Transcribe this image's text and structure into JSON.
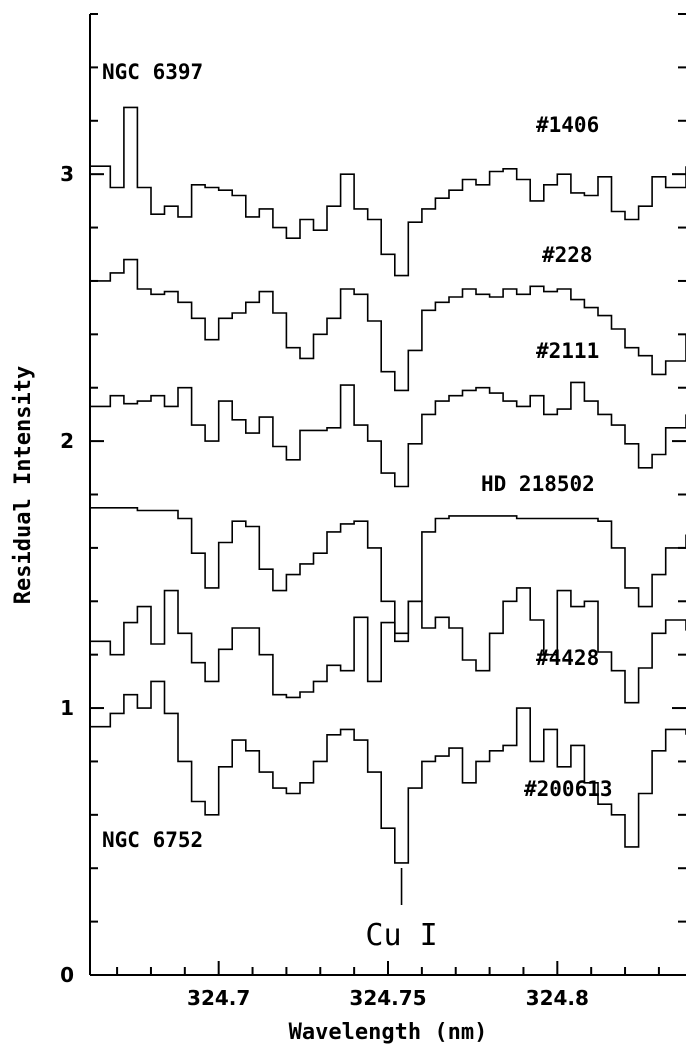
{
  "chart_data": {
    "type": "line",
    "title": "",
    "xlabel": "Wavelength (nm)",
    "ylabel": "Residual Intensity",
    "xlim": [
      324.662,
      324.838
    ],
    "ylim": [
      0,
      3.6
    ],
    "x_ticks": [
      "324.7",
      "324.75",
      "324.8"
    ],
    "y_ticks": [
      "0",
      "1",
      "2",
      "3"
    ],
    "grid": false,
    "cluster_labels": {
      "top": "NGC 6397",
      "bottom": "NGC 6752"
    },
    "line_annotation": {
      "label": "Cu I",
      "x": 324.754
    },
    "series": [
      {
        "name": "#1406",
        "x": [
          324.662,
          324.668,
          324.672,
          324.676,
          324.68,
          324.684,
          324.688,
          324.692,
          324.696,
          324.7,
          324.704,
          324.708,
          324.712,
          324.716,
          324.72,
          324.724,
          324.728,
          324.732,
          324.736,
          324.74,
          324.744,
          324.748,
          324.752,
          324.756,
          324.76,
          324.764,
          324.768,
          324.772,
          324.776,
          324.78,
          324.784,
          324.788,
          324.792,
          324.796,
          324.8,
          324.804,
          324.808,
          324.812,
          324.816,
          324.82,
          324.824,
          324.828,
          324.832,
          324.838
        ],
        "y": [
          3.03,
          2.95,
          3.25,
          2.95,
          2.85,
          2.88,
          2.84,
          2.96,
          2.95,
          2.94,
          2.92,
          2.84,
          2.87,
          2.8,
          2.76,
          2.83,
          2.79,
          2.88,
          3.0,
          2.87,
          2.83,
          2.7,
          2.62,
          2.82,
          2.87,
          2.91,
          2.94,
          2.98,
          2.96,
          3.01,
          3.02,
          2.98,
          2.9,
          2.96,
          3.0,
          2.93,
          2.92,
          2.99,
          2.86,
          2.83,
          2.88,
          2.99,
          2.95,
          3.03
        ]
      },
      {
        "name": "#228",
        "x": [
          324.662,
          324.668,
          324.672,
          324.676,
          324.68,
          324.684,
          324.688,
          324.692,
          324.696,
          324.7,
          324.704,
          324.708,
          324.712,
          324.716,
          324.72,
          324.724,
          324.728,
          324.732,
          324.736,
          324.74,
          324.744,
          324.748,
          324.752,
          324.756,
          324.76,
          324.764,
          324.768,
          324.772,
          324.776,
          324.78,
          324.784,
          324.788,
          324.792,
          324.796,
          324.8,
          324.804,
          324.808,
          324.812,
          324.816,
          324.82,
          324.824,
          324.828,
          324.832,
          324.838
        ],
        "y": [
          2.6,
          2.63,
          2.68,
          2.57,
          2.55,
          2.56,
          2.52,
          2.46,
          2.38,
          2.46,
          2.48,
          2.52,
          2.56,
          2.48,
          2.35,
          2.31,
          2.4,
          2.46,
          2.57,
          2.55,
          2.45,
          2.26,
          2.19,
          2.34,
          2.49,
          2.52,
          2.54,
          2.57,
          2.55,
          2.54,
          2.57,
          2.55,
          2.58,
          2.56,
          2.57,
          2.53,
          2.5,
          2.47,
          2.42,
          2.35,
          2.32,
          2.25,
          2.3,
          2.4
        ]
      },
      {
        "name": "#2111",
        "x": [
          324.662,
          324.668,
          324.672,
          324.676,
          324.68,
          324.684,
          324.688,
          324.692,
          324.696,
          324.7,
          324.704,
          324.708,
          324.712,
          324.716,
          324.72,
          324.724,
          324.728,
          324.732,
          324.736,
          324.74,
          324.744,
          324.748,
          324.752,
          324.756,
          324.76,
          324.764,
          324.768,
          324.772,
          324.776,
          324.78,
          324.784,
          324.788,
          324.792,
          324.796,
          324.8,
          324.804,
          324.808,
          324.812,
          324.816,
          324.82,
          324.824,
          324.828,
          324.832,
          324.838
        ],
        "y": [
          2.13,
          2.17,
          2.14,
          2.15,
          2.17,
          2.13,
          2.2,
          2.06,
          2.0,
          2.15,
          2.08,
          2.03,
          2.09,
          1.98,
          1.93,
          2.04,
          2.04,
          2.05,
          2.21,
          2.06,
          2.0,
          1.88,
          1.83,
          1.99,
          2.1,
          2.15,
          2.17,
          2.19,
          2.2,
          2.18,
          2.15,
          2.13,
          2.17,
          2.1,
          2.12,
          2.22,
          2.15,
          2.1,
          2.06,
          1.99,
          1.9,
          1.95,
          2.05,
          2.1
        ]
      },
      {
        "name": "HD 218502",
        "x": [
          324.662,
          324.668,
          324.672,
          324.676,
          324.68,
          324.684,
          324.688,
          324.692,
          324.696,
          324.7,
          324.704,
          324.708,
          324.712,
          324.716,
          324.72,
          324.724,
          324.728,
          324.732,
          324.736,
          324.74,
          324.744,
          324.748,
          324.752,
          324.756,
          324.76,
          324.764,
          324.768,
          324.772,
          324.776,
          324.78,
          324.784,
          324.788,
          324.792,
          324.796,
          324.8,
          324.804,
          324.808,
          324.812,
          324.816,
          324.82,
          324.824,
          324.828,
          324.832,
          324.838
        ],
        "y": [
          1.75,
          1.75,
          1.75,
          1.74,
          1.74,
          1.74,
          1.71,
          1.58,
          1.45,
          1.62,
          1.7,
          1.68,
          1.52,
          1.44,
          1.5,
          1.54,
          1.58,
          1.66,
          1.69,
          1.7,
          1.6,
          1.4,
          1.28,
          1.4,
          1.66,
          1.71,
          1.72,
          1.72,
          1.72,
          1.72,
          1.72,
          1.71,
          1.71,
          1.71,
          1.71,
          1.71,
          1.71,
          1.7,
          1.6,
          1.45,
          1.38,
          1.5,
          1.6,
          1.65
        ]
      },
      {
        "name": "#4428",
        "x": [
          324.662,
          324.668,
          324.672,
          324.676,
          324.68,
          324.684,
          324.688,
          324.692,
          324.696,
          324.7,
          324.704,
          324.708,
          324.712,
          324.716,
          324.72,
          324.724,
          324.728,
          324.732,
          324.736,
          324.74,
          324.744,
          324.748,
          324.752,
          324.756,
          324.76,
          324.764,
          324.768,
          324.772,
          324.776,
          324.78,
          324.784,
          324.788,
          324.792,
          324.796,
          324.8,
          324.804,
          324.808,
          324.812,
          324.816,
          324.82,
          324.824,
          324.828,
          324.832,
          324.838
        ],
        "y": [
          1.25,
          1.2,
          1.32,
          1.38,
          1.24,
          1.44,
          1.28,
          1.17,
          1.1,
          1.22,
          1.3,
          1.3,
          1.2,
          1.05,
          1.04,
          1.06,
          1.1,
          1.16,
          1.14,
          1.34,
          1.1,
          1.32,
          1.25,
          1.4,
          1.3,
          1.34,
          1.3,
          1.18,
          1.14,
          1.28,
          1.4,
          1.45,
          1.33,
          1.2,
          1.44,
          1.38,
          1.4,
          1.21,
          1.14,
          1.02,
          1.15,
          1.28,
          1.33,
          1.29
        ]
      },
      {
        "name": "#200613",
        "x": [
          324.662,
          324.668,
          324.672,
          324.676,
          324.68,
          324.684,
          324.688,
          324.692,
          324.696,
          324.7,
          324.704,
          324.708,
          324.712,
          324.716,
          324.72,
          324.724,
          324.728,
          324.732,
          324.736,
          324.74,
          324.744,
          324.748,
          324.752,
          324.756,
          324.76,
          324.764,
          324.768,
          324.772,
          324.776,
          324.78,
          324.784,
          324.788,
          324.792,
          324.796,
          324.8,
          324.804,
          324.808,
          324.812,
          324.816,
          324.82,
          324.824,
          324.828,
          324.832,
          324.838
        ],
        "y": [
          0.93,
          0.98,
          1.05,
          1.0,
          1.1,
          0.98,
          0.8,
          0.65,
          0.6,
          0.78,
          0.88,
          0.84,
          0.76,
          0.7,
          0.68,
          0.72,
          0.8,
          0.9,
          0.92,
          0.88,
          0.76,
          0.55,
          0.42,
          0.7,
          0.8,
          0.82,
          0.85,
          0.72,
          0.8,
          0.84,
          0.86,
          1.0,
          0.8,
          0.92,
          0.78,
          0.86,
          0.72,
          0.64,
          0.6,
          0.48,
          0.68,
          0.84,
          0.92,
          0.9
        ]
      }
    ]
  }
}
